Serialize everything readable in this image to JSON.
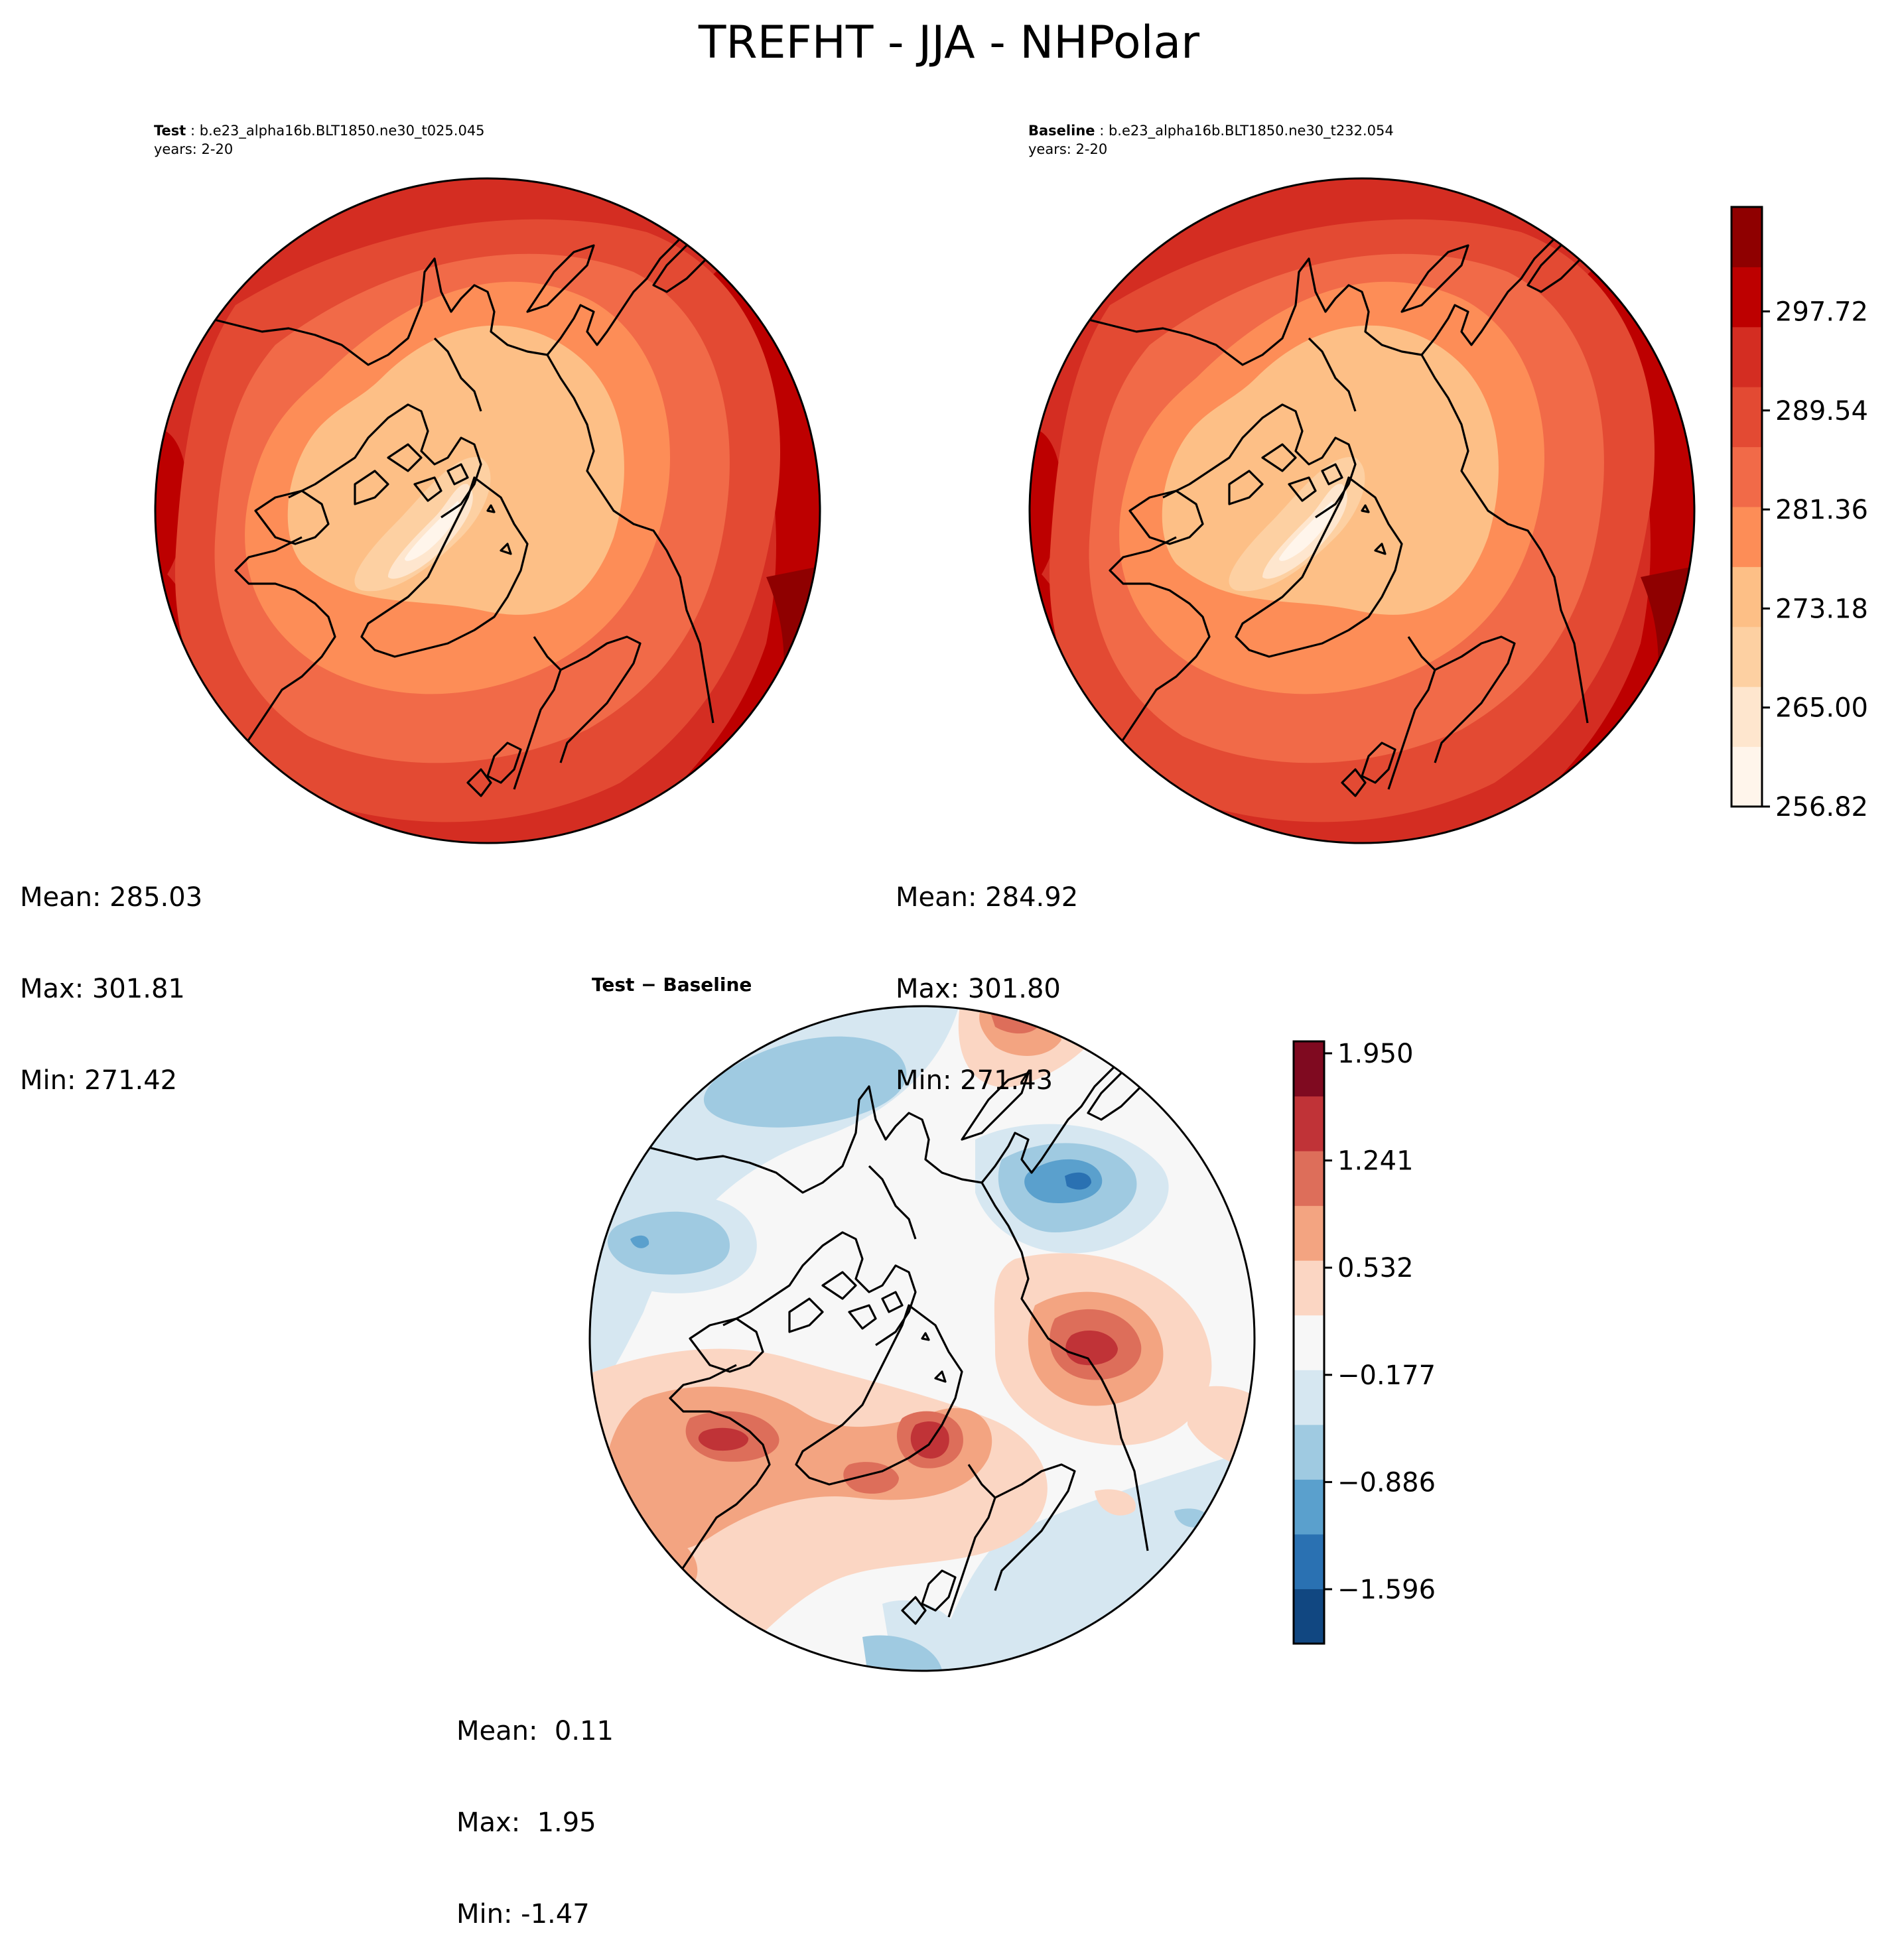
{
  "figure": {
    "title": "TREFHT - JJA - NHPolar"
  },
  "panels": {
    "test": {
      "label": "Test",
      "case": "b.e23_alpha16b.BLT1850.ne30_t025.045",
      "years": "years: 2-20",
      "stats": {
        "mean": "Mean: 285.03",
        "max": "Max: 301.81",
        "min": "Min: 271.42"
      }
    },
    "baseline": {
      "label": "Baseline",
      "case": "b.e23_alpha16b.BLT1850.ne30_t232.054",
      "years": "years: 2-20",
      "stats": {
        "mean": "Mean: 284.92",
        "max": "Max: 301.80",
        "min": "Min: 271.43"
      }
    },
    "difference": {
      "title": "Test − Baseline",
      "stats": {
        "mean": "Mean:  0.11",
        "max": "Max:  1.95",
        "min": "Min: -1.47"
      }
    }
  },
  "colorbars": {
    "absolute": {
      "ticks": [
        "256.82",
        "265.00",
        "273.18",
        "281.36",
        "289.54",
        "297.72"
      ],
      "colors": [
        "#fff5eb",
        "#fee6ce",
        "#fdd0a2",
        "#fdbf86",
        "#fd8d57",
        "#f16a48",
        "#e34a33",
        "#d42d22",
        "#bd0000",
        "#8f0000"
      ]
    },
    "difference": {
      "ticks": [
        "−1.596",
        "−0.886",
        "−0.177",
        "0.532",
        "1.241",
        "1.950"
      ],
      "colors": [
        "#114781",
        "#2a71b2",
        "#5aa0cd",
        "#9fcae1",
        "#d6e7f1",
        "#f7f7f7",
        "#fbd6c3",
        "#f3a481",
        "#dd6e5a",
        "#c03337",
        "#7f0a20"
      ]
    }
  }
}
